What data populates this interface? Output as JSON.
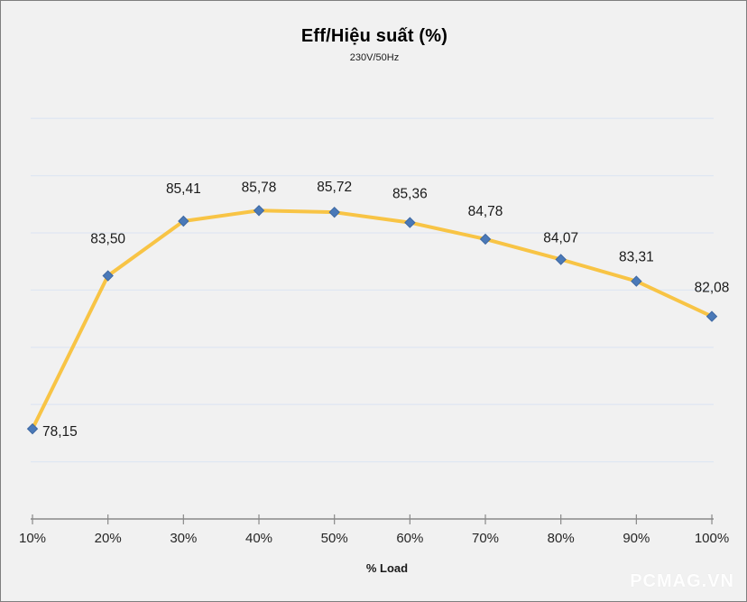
{
  "chart_data": {
    "type": "line",
    "title": "Eff/Hiệu suất (%)",
    "subtitle": "230V/50Hz",
    "xlabel": "% Load",
    "ylabel": "",
    "categories": [
      "10%",
      "20%",
      "30%",
      "40%",
      "50%",
      "60%",
      "70%",
      "80%",
      "90%",
      "100%"
    ],
    "series": [
      {
        "name": "Eff/Hiệu suất (%)",
        "values": [
          78.15,
          83.5,
          85.41,
          85.78,
          85.72,
          85.36,
          84.78,
          84.07,
          83.31,
          82.08
        ],
        "labels": [
          "78,15",
          "83,50",
          "85,41",
          "85,78",
          "85,72",
          "85,36",
          "84,78",
          "84,07",
          "83,31",
          "82,08"
        ]
      }
    ],
    "ylim": [
      75,
      90
    ],
    "gridline_values": [
      77,
      79,
      81,
      83,
      85,
      87,
      89
    ],
    "grid": "horizontal-only",
    "legend": "none",
    "marker_shape": "diamond"
  },
  "watermark": "PCMAG.VN",
  "colors": {
    "background": "#f1f1f1",
    "frame_border": "#7f7f7f",
    "line": "#f8c445",
    "marker_fill": "#4a79b8",
    "marker_stroke": "#3e68a2",
    "gridline": "#dfe7f2",
    "axis": "#898989",
    "data_label": "#1a1a1a",
    "tick_label": "#262626"
  }
}
